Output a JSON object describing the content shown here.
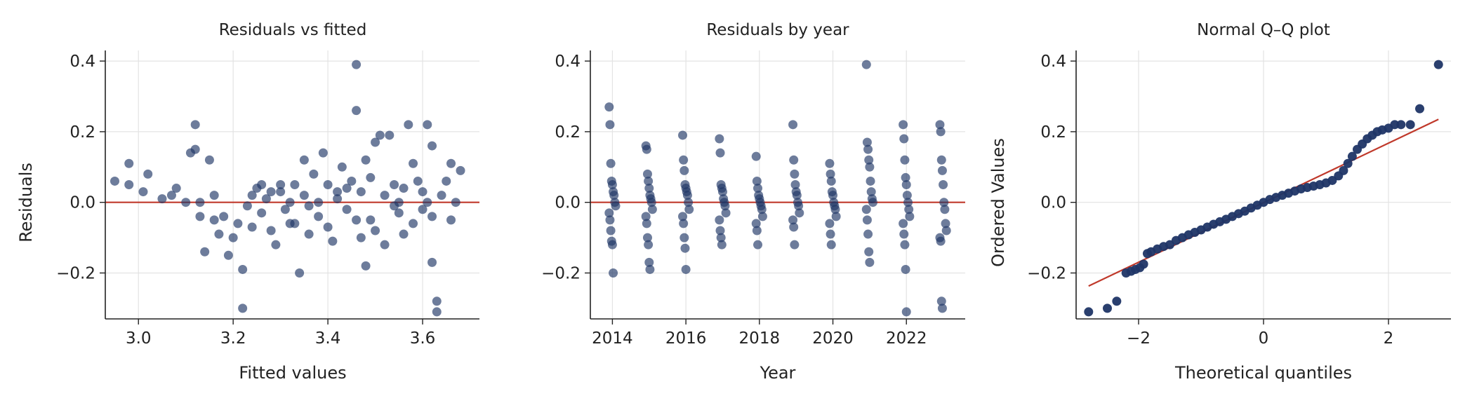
{
  "colors": {
    "points": "#1f3566",
    "reference_line": "#c0392b"
  },
  "chart_data": [
    {
      "type": "scatter",
      "title": "Residuals vs fitted",
      "xlabel": "Fitted values",
      "ylabel": "Residuals",
      "xlim": [
        2.93,
        3.72
      ],
      "ylim": [
        -0.33,
        0.43
      ],
      "xticks": [
        {
          "v": 3.0,
          "label": "3.0"
        },
        {
          "v": 3.2,
          "label": "3.2"
        },
        {
          "v": 3.4,
          "label": "3.4"
        },
        {
          "v": 3.6,
          "label": "3.6"
        }
      ],
      "yticks": [
        {
          "v": -0.2,
          "label": "−0.2"
        },
        {
          "v": 0.0,
          "label": "0.0"
        },
        {
          "v": 0.2,
          "label": "0.2"
        },
        {
          "v": 0.4,
          "label": "0.4"
        }
      ],
      "grid": true,
      "reference_line": {
        "kind": "horizontal",
        "y": 0
      },
      "points": [
        [
          2.95,
          0.06
        ],
        [
          2.98,
          0.11
        ],
        [
          2.98,
          0.05
        ],
        [
          3.01,
          0.03
        ],
        [
          3.02,
          0.08
        ],
        [
          3.05,
          0.01
        ],
        [
          3.07,
          0.02
        ],
        [
          3.08,
          0.04
        ],
        [
          3.1,
          0.0
        ],
        [
          3.11,
          0.14
        ],
        [
          3.12,
          0.22
        ],
        [
          3.12,
          0.15
        ],
        [
          3.13,
          0.0
        ],
        [
          3.13,
          -0.04
        ],
        [
          3.14,
          -0.14
        ],
        [
          3.15,
          0.12
        ],
        [
          3.16,
          0.02
        ],
        [
          3.16,
          -0.05
        ],
        [
          3.17,
          -0.09
        ],
        [
          3.18,
          -0.04
        ],
        [
          3.19,
          -0.15
        ],
        [
          3.2,
          -0.1
        ],
        [
          3.21,
          -0.06
        ],
        [
          3.22,
          -0.19
        ],
        [
          3.22,
          -0.3
        ],
        [
          3.24,
          0.02
        ],
        [
          3.24,
          -0.07
        ],
        [
          3.25,
          0.04
        ],
        [
          3.26,
          -0.03
        ],
        [
          3.27,
          0.01
        ],
        [
          3.28,
          -0.08
        ],
        [
          3.29,
          -0.12
        ],
        [
          3.3,
          0.03
        ],
        [
          3.3,
          0.05
        ],
        [
          3.31,
          -0.02
        ],
        [
          3.32,
          0.0
        ],
        [
          3.33,
          0.05
        ],
        [
          3.33,
          -0.06
        ],
        [
          3.34,
          -0.2
        ],
        [
          3.35,
          0.02
        ],
        [
          3.35,
          0.12
        ],
        [
          3.36,
          -0.09
        ],
        [
          3.37,
          0.08
        ],
        [
          3.38,
          0.0
        ],
        [
          3.38,
          -0.04
        ],
        [
          3.39,
          0.14
        ],
        [
          3.4,
          0.05
        ],
        [
          3.4,
          -0.07
        ],
        [
          3.41,
          -0.11
        ],
        [
          3.42,
          0.03
        ],
        [
          3.42,
          0.01
        ],
        [
          3.43,
          0.1
        ],
        [
          3.44,
          -0.02
        ],
        [
          3.45,
          0.06
        ],
        [
          3.46,
          0.39
        ],
        [
          3.46,
          0.26
        ],
        [
          3.46,
          -0.05
        ],
        [
          3.47,
          0.03
        ],
        [
          3.47,
          -0.1
        ],
        [
          3.48,
          0.12
        ],
        [
          3.48,
          -0.18
        ],
        [
          3.49,
          0.07
        ],
        [
          3.49,
          -0.05
        ],
        [
          3.5,
          0.17
        ],
        [
          3.51,
          0.19
        ],
        [
          3.52,
          0.02
        ],
        [
          3.52,
          -0.12
        ],
        [
          3.53,
          0.19
        ],
        [
          3.54,
          0.05
        ],
        [
          3.55,
          -0.03
        ],
        [
          3.55,
          0.0
        ],
        [
          3.56,
          0.04
        ],
        [
          3.57,
          0.22
        ],
        [
          3.58,
          -0.06
        ],
        [
          3.58,
          0.11
        ],
        [
          3.59,
          0.06
        ],
        [
          3.6,
          0.03
        ],
        [
          3.61,
          0.22
        ],
        [
          3.61,
          0.0
        ],
        [
          3.62,
          -0.04
        ],
        [
          3.62,
          0.16
        ],
        [
          3.62,
          -0.17
        ],
        [
          3.63,
          -0.28
        ],
        [
          3.63,
          -0.31
        ],
        [
          3.64,
          0.02
        ],
        [
          3.65,
          0.06
        ],
        [
          3.66,
          -0.05
        ],
        [
          3.66,
          0.11
        ],
        [
          3.67,
          0.0
        ],
        [
          3.68,
          0.09
        ],
        [
          3.26,
          0.05
        ],
        [
          3.28,
          0.03
        ],
        [
          3.32,
          -0.06
        ],
        [
          3.36,
          -0.01
        ],
        [
          3.44,
          0.04
        ],
        [
          3.5,
          -0.08
        ],
        [
          3.54,
          -0.01
        ],
        [
          3.56,
          -0.09
        ],
        [
          3.6,
          -0.02
        ],
        [
          3.23,
          -0.01
        ]
      ]
    },
    {
      "type": "scatter",
      "title": "Residuals by year",
      "xlabel": "Year",
      "ylabel": "",
      "xlim": [
        2013.4,
        2023.6
      ],
      "ylim": [
        -0.33,
        0.43
      ],
      "xticks": [
        {
          "v": 2014,
          "label": "2014"
        },
        {
          "v": 2016,
          "label": "2016"
        },
        {
          "v": 2018,
          "label": "2018"
        },
        {
          "v": 2020,
          "label": "2020"
        },
        {
          "v": 2022,
          "label": "2022"
        }
      ],
      "yticks": [
        {
          "v": -0.2,
          "label": "−0.2"
        },
        {
          "v": 0.0,
          "label": "0.0"
        },
        {
          "v": 0.2,
          "label": "0.2"
        },
        {
          "v": 0.4,
          "label": "0.4"
        }
      ],
      "grid": true,
      "reference_line": {
        "kind": "horizontal",
        "y": 0
      },
      "groups": [
        {
          "year": 2014,
          "values": [
            0.27,
            0.22,
            0.11,
            0.06,
            0.05,
            0.03,
            0.02,
            0.0,
            -0.01,
            -0.03,
            -0.05,
            -0.08,
            -0.11,
            -0.12,
            -0.2
          ]
        },
        {
          "year": 2015,
          "values": [
            0.16,
            0.15,
            0.08,
            0.06,
            0.04,
            0.02,
            0.01,
            0.0,
            -0.02,
            -0.04,
            -0.06,
            -0.1,
            -0.12,
            -0.17,
            -0.19
          ]
        },
        {
          "year": 2016,
          "values": [
            0.19,
            0.12,
            0.09,
            0.05,
            0.04,
            0.03,
            0.02,
            0.0,
            -0.02,
            -0.04,
            -0.06,
            -0.1,
            -0.13,
            -0.19
          ]
        },
        {
          "year": 2017,
          "values": [
            0.18,
            0.14,
            0.05,
            0.04,
            0.03,
            0.01,
            0.0,
            -0.01,
            -0.03,
            -0.05,
            -0.08,
            -0.1,
            -0.12
          ]
        },
        {
          "year": 2018,
          "values": [
            0.13,
            0.06,
            0.04,
            0.02,
            0.01,
            0.0,
            -0.01,
            -0.02,
            -0.04,
            -0.06,
            -0.08,
            -0.12
          ]
        },
        {
          "year": 2019,
          "values": [
            0.22,
            0.12,
            0.08,
            0.05,
            0.03,
            0.02,
            0.0,
            -0.01,
            -0.03,
            -0.05,
            -0.07,
            -0.12
          ]
        },
        {
          "year": 2020,
          "values": [
            0.11,
            0.08,
            0.06,
            0.03,
            0.02,
            0.0,
            -0.01,
            -0.02,
            -0.04,
            -0.06,
            -0.09,
            -0.12
          ]
        },
        {
          "year": 2021,
          "values": [
            0.39,
            0.17,
            0.15,
            0.12,
            0.1,
            0.06,
            0.03,
            0.01,
            0.0,
            -0.02,
            -0.05,
            -0.09,
            -0.14,
            -0.17
          ]
        },
        {
          "year": 2022,
          "values": [
            0.22,
            0.18,
            0.12,
            0.07,
            0.05,
            0.02,
            0.0,
            -0.02,
            -0.04,
            -0.06,
            -0.09,
            -0.12,
            -0.19,
            -0.31
          ]
        },
        {
          "year": 2023,
          "values": [
            0.22,
            0.2,
            0.12,
            0.09,
            0.05,
            0.0,
            -0.02,
            -0.06,
            -0.08,
            -0.1,
            -0.11,
            -0.28,
            -0.3
          ]
        }
      ]
    },
    {
      "type": "scatter",
      "title": "Normal Q–Q plot",
      "xlabel": "Theoretical quantiles",
      "ylabel": "Ordered Values",
      "xlim": [
        -3.0,
        3.0
      ],
      "ylim": [
        -0.33,
        0.43
      ],
      "xticks": [
        {
          "v": -2,
          "label": "−2"
        },
        {
          "v": 0,
          "label": "0"
        },
        {
          "v": 2,
          "label": "2"
        }
      ],
      "yticks": [
        {
          "v": -0.2,
          "label": "−0.2"
        },
        {
          "v": 0.0,
          "label": "0.0"
        },
        {
          "v": 0.2,
          "label": "0.2"
        },
        {
          "v": 0.4,
          "label": "0.4"
        }
      ],
      "grid": true,
      "reference_line": {
        "kind": "fit",
        "x1": -2.8,
        "y1": -0.237,
        "x2": 2.8,
        "y2": 0.235
      },
      "points": [
        [
          -2.8,
          -0.31
        ],
        [
          -2.5,
          -0.3
        ],
        [
          -2.35,
          -0.28
        ],
        [
          -2.2,
          -0.2
        ],
        [
          -2.12,
          -0.195
        ],
        [
          -2.05,
          -0.19
        ],
        [
          -1.98,
          -0.185
        ],
        [
          -1.92,
          -0.175
        ],
        [
          -1.86,
          -0.145
        ],
        [
          -1.8,
          -0.14
        ],
        [
          -1.7,
          -0.132
        ],
        [
          -1.6,
          -0.125
        ],
        [
          -1.5,
          -0.12
        ],
        [
          -1.4,
          -0.108
        ],
        [
          -1.3,
          -0.1
        ],
        [
          -1.2,
          -0.092
        ],
        [
          -1.1,
          -0.085
        ],
        [
          -1.0,
          -0.078
        ],
        [
          -0.9,
          -0.07
        ],
        [
          -0.8,
          -0.062
        ],
        [
          -0.7,
          -0.055
        ],
        [
          -0.6,
          -0.048
        ],
        [
          -0.5,
          -0.04
        ],
        [
          -0.4,
          -0.032
        ],
        [
          -0.3,
          -0.025
        ],
        [
          -0.2,
          -0.016
        ],
        [
          -0.1,
          -0.008
        ],
        [
          0.0,
          0.0
        ],
        [
          0.1,
          0.008
        ],
        [
          0.2,
          0.014
        ],
        [
          0.3,
          0.02
        ],
        [
          0.4,
          0.026
        ],
        [
          0.5,
          0.032
        ],
        [
          0.6,
          0.038
        ],
        [
          0.7,
          0.042
        ],
        [
          0.8,
          0.046
        ],
        [
          0.9,
          0.05
        ],
        [
          1.0,
          0.055
        ],
        [
          1.1,
          0.062
        ],
        [
          1.2,
          0.075
        ],
        [
          1.28,
          0.09
        ],
        [
          1.35,
          0.11
        ],
        [
          1.42,
          0.13
        ],
        [
          1.5,
          0.15
        ],
        [
          1.58,
          0.165
        ],
        [
          1.66,
          0.18
        ],
        [
          1.74,
          0.19
        ],
        [
          1.82,
          0.2
        ],
        [
          1.9,
          0.205
        ],
        [
          2.0,
          0.21
        ],
        [
          2.1,
          0.22
        ],
        [
          2.2,
          0.22
        ],
        [
          2.35,
          0.22
        ],
        [
          2.5,
          0.265
        ],
        [
          2.8,
          0.39
        ]
      ]
    }
  ]
}
